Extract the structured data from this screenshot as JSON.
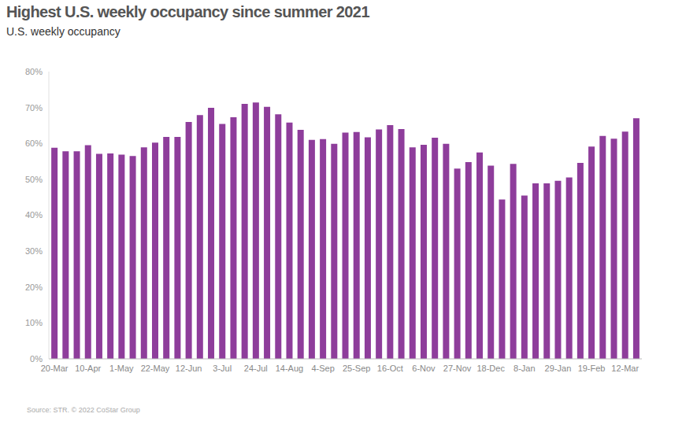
{
  "chart_data": {
    "type": "bar",
    "title": "Highest U.S. weekly occupancy since summer 2021",
    "subtitle": "U.S. weekly occupancy",
    "source": "Source: STR. © 2022 CoStar Group",
    "categories": [
      "20-Mar",
      null,
      null,
      "10-Apr",
      null,
      null,
      "1-May",
      null,
      null,
      "22-May",
      null,
      null,
      "12-Jun",
      null,
      null,
      "3-Jul",
      null,
      null,
      "24-Jul",
      null,
      null,
      "14-Aug",
      null,
      null,
      "4-Sep",
      null,
      null,
      "25-Sep",
      null,
      null,
      "16-Oct",
      null,
      null,
      "6-Nov",
      null,
      null,
      "27-Nov",
      null,
      null,
      "18-Dec",
      null,
      null,
      "8-Jan",
      null,
      null,
      "29-Jan",
      null,
      null,
      "19-Feb",
      null,
      null,
      "12-Mar",
      null
    ],
    "values": [
      58.8,
      57.8,
      57.8,
      59.5,
      57.1,
      57.2,
      56.9,
      56.5,
      58.9,
      60.2,
      61.8,
      61.8,
      66.0,
      67.9,
      69.9,
      65.4,
      67.3,
      71.0,
      71.4,
      70.2,
      68.1,
      65.8,
      63.8,
      61.0,
      61.2,
      59.9,
      63.0,
      63.2,
      61.7,
      63.9,
      65.1,
      64.0,
      58.9,
      59.6,
      61.6,
      59.9,
      53.0,
      54.8,
      57.5,
      53.8,
      44.4,
      54.3,
      45.5,
      48.9,
      48.9,
      49.6,
      50.5,
      54.6,
      59.1,
      62.1,
      61.3,
      63.3,
      67.0
    ],
    "color": "#8e3d9b",
    "ylim": [
      0,
      80
    ],
    "yticks": [
      {
        "value": 0,
        "label": "0%"
      },
      {
        "value": 10,
        "label": "10%"
      },
      {
        "value": 20,
        "label": "20%"
      },
      {
        "value": 30,
        "label": "30%"
      },
      {
        "value": 40,
        "label": "40%"
      },
      {
        "value": 50,
        "label": "50%"
      },
      {
        "value": 60,
        "label": "60%"
      },
      {
        "value": 70,
        "label": "70%"
      },
      {
        "value": 80,
        "label": "80%"
      }
    ],
    "grid": false
  }
}
